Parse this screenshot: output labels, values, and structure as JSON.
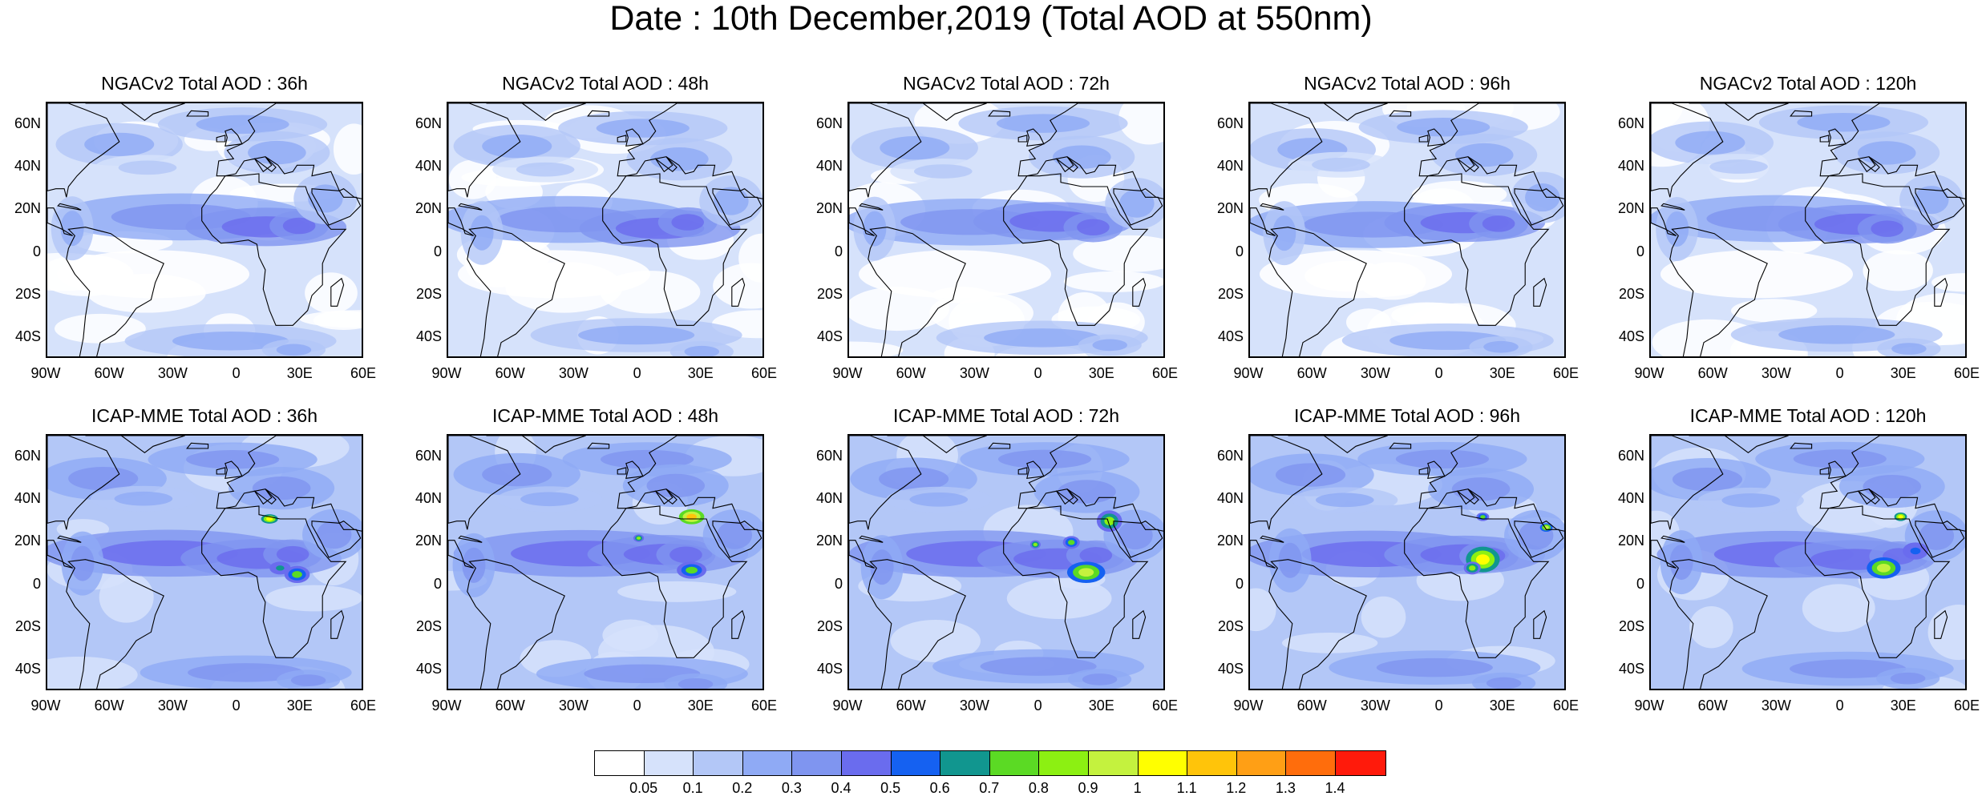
{
  "title": "Date : 10th December,2019 (Total AOD at 550nm)",
  "panels": [
    {
      "model": "NGACv2",
      "title": "NGACv2 Total AOD : 36h",
      "lead_hours": 36
    },
    {
      "model": "NGACv2",
      "title": "NGACv2 Total AOD : 48h",
      "lead_hours": 48
    },
    {
      "model": "NGACv2",
      "title": "NGACv2 Total AOD : 72h",
      "lead_hours": 72
    },
    {
      "model": "NGACv2",
      "title": "NGACv2 Total AOD : 96h",
      "lead_hours": 96
    },
    {
      "model": "NGACv2",
      "title": "NGACv2 Total AOD : 120h",
      "lead_hours": 120
    },
    {
      "model": "ICAP-MME",
      "title": "ICAP-MME Total AOD : 36h",
      "lead_hours": 36
    },
    {
      "model": "ICAP-MME",
      "title": "ICAP-MME Total AOD : 48h",
      "lead_hours": 48
    },
    {
      "model": "ICAP-MME",
      "title": "ICAP-MME Total AOD : 72h",
      "lead_hours": 72
    },
    {
      "model": "ICAP-MME",
      "title": "ICAP-MME Total AOD : 96h",
      "lead_hours": 96
    },
    {
      "model": "ICAP-MME",
      "title": "ICAP-MME Total AOD : 120h",
      "lead_hours": 120
    }
  ],
  "axes": {
    "lat_ticks": [
      "60N",
      "40N",
      "20N",
      "0",
      "20S",
      "40S"
    ],
    "lon_ticks": [
      "90W",
      "60W",
      "30W",
      "0",
      "30E",
      "60E"
    ],
    "lon_range": [
      -90,
      60
    ],
    "lat_range": [
      -50,
      70
    ]
  },
  "colorbar": {
    "labels": [
      "0.05",
      "0.1",
      "0.2",
      "0.3",
      "0.4",
      "0.5",
      "0.6",
      "0.7",
      "0.8",
      "0.9",
      "1",
      "1.1",
      "1.2",
      "1.3",
      "1.4"
    ],
    "colors": [
      "#ffffff",
      "#d6e2fb",
      "#b3c7f7",
      "#8faaf5",
      "#7f95f0",
      "#6a6cee",
      "#1561f1",
      "#11968f",
      "#5bda24",
      "#8cf012",
      "#c4f23e",
      "#ffff00",
      "#ffc40a",
      "#ff9f15",
      "#ff6d0c",
      "#ff1a0b"
    ]
  }
}
